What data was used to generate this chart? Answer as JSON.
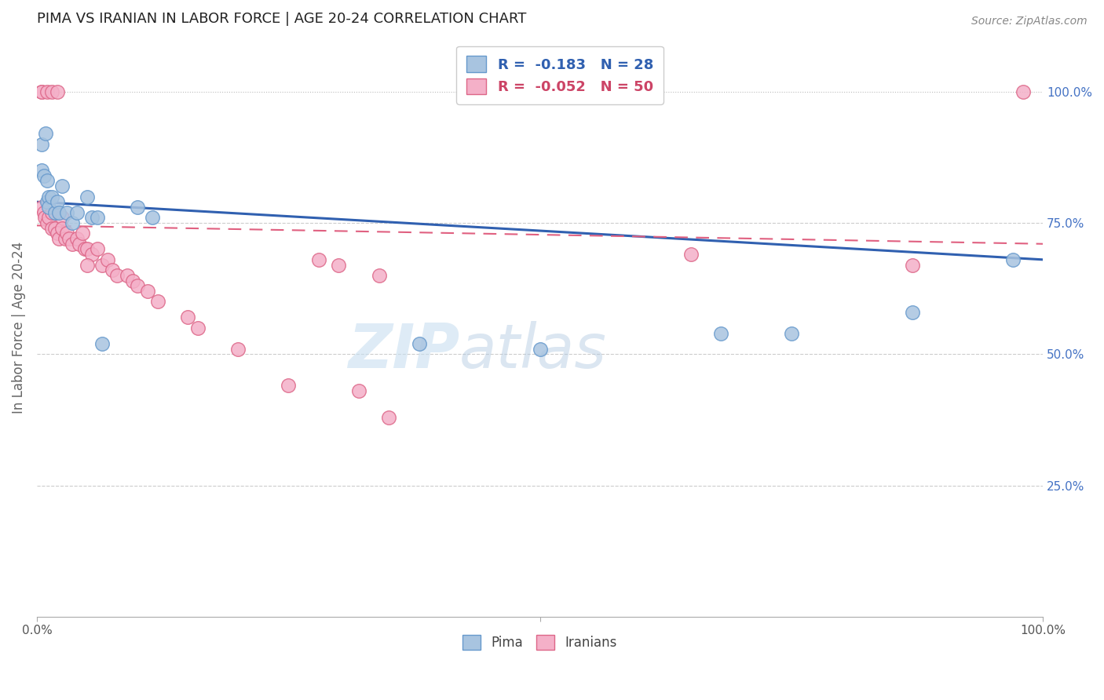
{
  "title": "PIMA VS IRANIAN IN LABOR FORCE | AGE 20-24 CORRELATION CHART",
  "source": "Source: ZipAtlas.com",
  "ylabel": "In Labor Force | Age 20-24",
  "ylabel_ticks": [
    "25.0%",
    "50.0%",
    "75.0%",
    "100.0%"
  ],
  "ylabel_tick_vals": [
    0.25,
    0.5,
    0.75,
    1.0
  ],
  "xlim": [
    0.0,
    1.0
  ],
  "ylim": [
    0.0,
    1.1
  ],
  "legend_blue_label": "R =  -0.183   N = 28",
  "legend_pink_label": "R =  -0.052   N = 50",
  "pima_x": [
    0.005,
    0.005,
    0.007,
    0.009,
    0.01,
    0.01,
    0.012,
    0.012,
    0.015,
    0.018,
    0.02,
    0.022,
    0.025,
    0.03,
    0.035,
    0.04,
    0.05,
    0.055,
    0.06,
    0.065,
    0.1,
    0.115,
    0.38,
    0.5,
    0.68,
    0.75,
    0.87,
    0.97
  ],
  "pima_y": [
    0.9,
    0.85,
    0.84,
    0.92,
    0.83,
    0.79,
    0.8,
    0.78,
    0.8,
    0.77,
    0.79,
    0.77,
    0.82,
    0.77,
    0.75,
    0.77,
    0.8,
    0.76,
    0.76,
    0.52,
    0.78,
    0.76,
    0.52,
    0.51,
    0.54,
    0.54,
    0.58,
    0.68
  ],
  "iranian_x": [
    0.005,
    0.005,
    0.01,
    0.015,
    0.02,
    0.005,
    0.007,
    0.008,
    0.01,
    0.012,
    0.015,
    0.015,
    0.018,
    0.02,
    0.022,
    0.025,
    0.025,
    0.028,
    0.03,
    0.032,
    0.035,
    0.04,
    0.042,
    0.045,
    0.048,
    0.05,
    0.055,
    0.06,
    0.065,
    0.07,
    0.075,
    0.08,
    0.09,
    0.095,
    0.1,
    0.11,
    0.12,
    0.15,
    0.16,
    0.2,
    0.25,
    0.28,
    0.3,
    0.34,
    0.35,
    0.05,
    0.32,
    0.65,
    0.87,
    0.98
  ],
  "iranian_y": [
    1.0,
    1.0,
    1.0,
    1.0,
    1.0,
    0.78,
    0.77,
    0.76,
    0.75,
    0.76,
    0.77,
    0.74,
    0.74,
    0.73,
    0.72,
    0.76,
    0.74,
    0.72,
    0.73,
    0.72,
    0.71,
    0.72,
    0.71,
    0.73,
    0.7,
    0.7,
    0.69,
    0.7,
    0.67,
    0.68,
    0.66,
    0.65,
    0.65,
    0.64,
    0.63,
    0.62,
    0.6,
    0.57,
    0.55,
    0.51,
    0.44,
    0.68,
    0.67,
    0.65,
    0.38,
    0.67,
    0.43,
    0.69,
    0.67,
    1.0
  ],
  "pima_color": "#a8c4e0",
  "pima_edge": "#6699cc",
  "iranian_color": "#f4b0c8",
  "iranian_edge": "#dd6688",
  "trend_blue_y_start": 0.79,
  "trend_blue_y_end": 0.68,
  "trend_pink_y_start": 0.745,
  "trend_pink_y_end": 0.71,
  "watermark_zip": "ZIP",
  "watermark_atlas": "atlas",
  "background": "#ffffff"
}
